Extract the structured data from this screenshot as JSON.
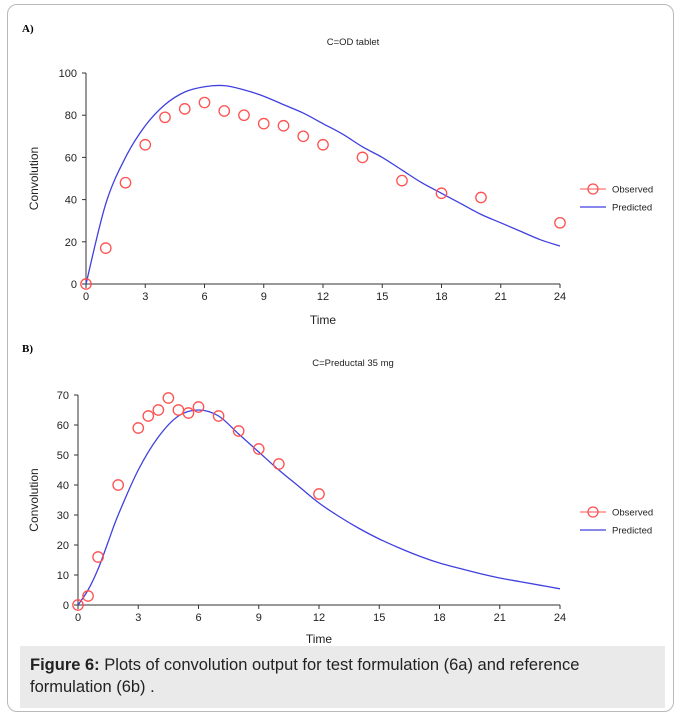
{
  "figure": {
    "caption_label": "Figure 6:",
    "caption_text": "Plots of convolution output for test formulation (6a) and reference formulation (6b) ."
  },
  "chart_data": [
    {
      "panel": "A)",
      "type": "scatter",
      "title": "C=OD tablet",
      "xlabel": "Time",
      "ylabel": "Convolution",
      "xlim": [
        0,
        24
      ],
      "ylim": [
        0,
        100
      ],
      "xticks": [
        0,
        3,
        6,
        9,
        12,
        15,
        18,
        21,
        24
      ],
      "yticks": [
        0,
        20,
        40,
        60,
        80,
        100
      ],
      "legend": "right",
      "series": [
        {
          "name": "Observed",
          "kind": "markers",
          "marker": "circle",
          "color": "#ff5050",
          "x": [
            0,
            1,
            2,
            3,
            4,
            5,
            6,
            7,
            8,
            9,
            10,
            11,
            12,
            14,
            16,
            18,
            20,
            24
          ],
          "y": [
            0,
            17,
            48,
            66,
            79,
            83,
            86,
            82,
            80,
            76,
            75,
            70,
            66,
            60,
            49,
            43,
            41,
            29
          ]
        },
        {
          "name": "Predicted",
          "kind": "line",
          "color": "#4040e0",
          "x": [
            0,
            1,
            2,
            3,
            4,
            5,
            6,
            7,
            8,
            9,
            10,
            11,
            12,
            13,
            14,
            15,
            16,
            17,
            18,
            19,
            20,
            21,
            22,
            23,
            24
          ],
          "y": [
            0,
            38,
            60,
            75,
            85,
            91,
            93.5,
            94,
            92,
            89,
            85,
            81,
            76,
            71,
            65,
            60,
            54,
            48,
            43,
            38,
            33,
            29,
            25,
            21,
            18
          ]
        }
      ]
    },
    {
      "panel": "B)",
      "type": "scatter",
      "title": "C=Preductal 35 mg",
      "xlabel": "Time",
      "ylabel": "Convolution",
      "xlim": [
        0,
        24
      ],
      "ylim": [
        0,
        70
      ],
      "xticks": [
        0,
        3,
        6,
        9,
        12,
        15,
        18,
        21,
        24
      ],
      "yticks": [
        0,
        10,
        20,
        30,
        40,
        50,
        60,
        70
      ],
      "legend": "right",
      "series": [
        {
          "name": "Observed",
          "kind": "markers",
          "marker": "circle",
          "color": "#ff5050",
          "x": [
            0,
            0.5,
            1,
            2,
            3,
            3.5,
            4,
            4.5,
            5,
            5.5,
            6,
            7,
            8,
            9,
            10,
            12
          ],
          "y": [
            0,
            3,
            16,
            40,
            59,
            63,
            65,
            69,
            65,
            64,
            66,
            63,
            58,
            52,
            47,
            37
          ]
        },
        {
          "name": "Predicted",
          "kind": "line",
          "color": "#4040e0",
          "x": [
            0,
            0.5,
            1,
            1.5,
            2,
            3,
            4,
            5,
            6,
            7,
            8,
            9,
            10,
            11,
            12,
            13,
            14,
            15,
            16,
            17,
            18,
            19,
            20,
            21,
            22,
            23,
            24
          ],
          "y": [
            0,
            5,
            12,
            21,
            30,
            45,
            56,
            63,
            65,
            63,
            57,
            51,
            45,
            39.5,
            34,
            29.5,
            25.5,
            22,
            19,
            16.3,
            14,
            12.2,
            10.5,
            9,
            7.8,
            6.6,
            5.4
          ]
        }
      ]
    }
  ]
}
